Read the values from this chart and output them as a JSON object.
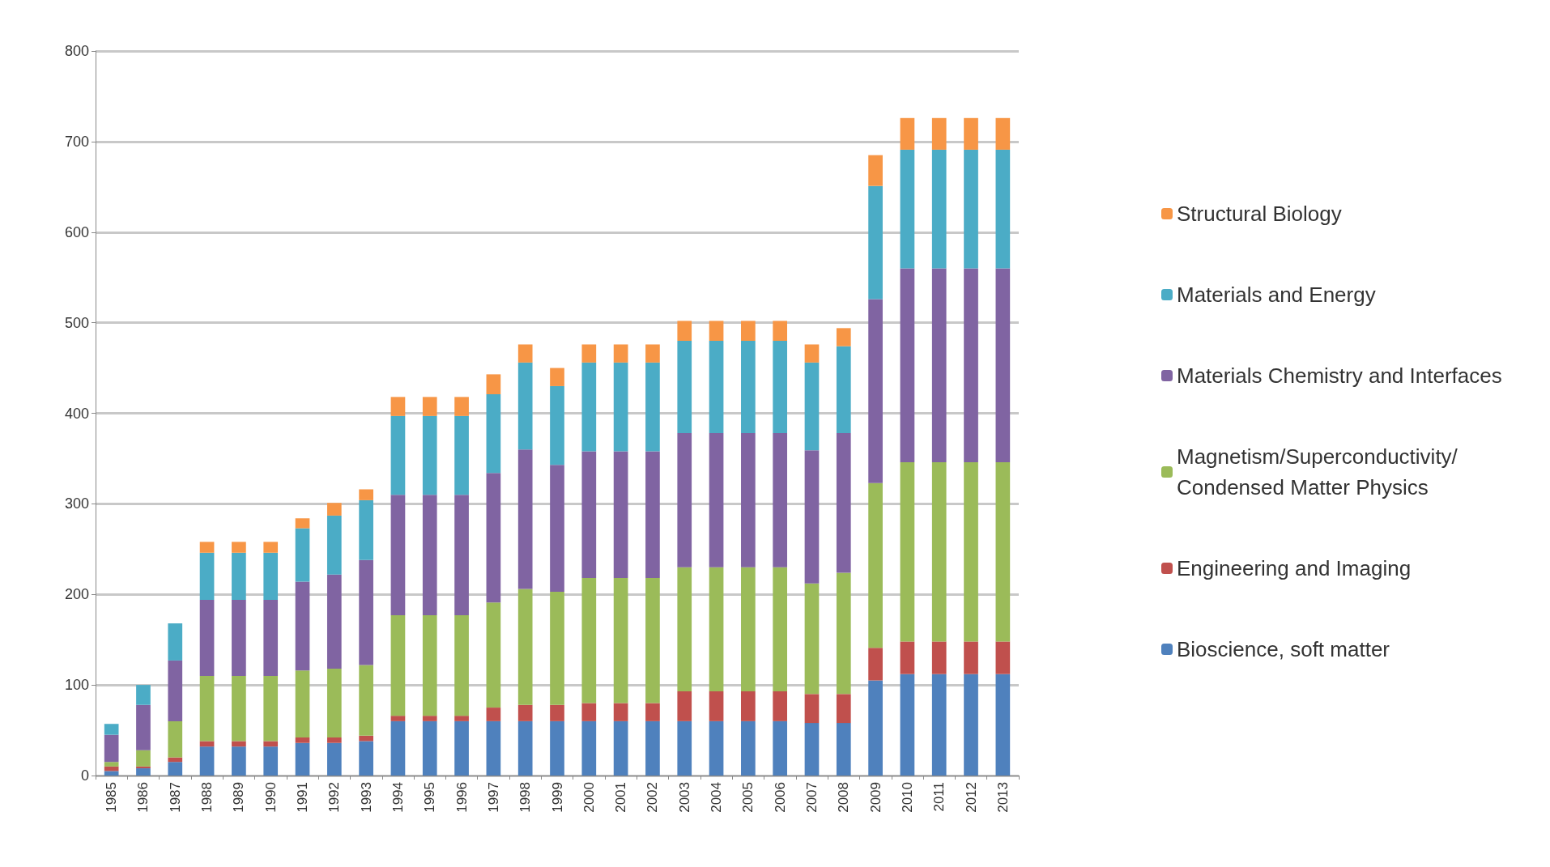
{
  "chart_data": {
    "type": "bar",
    "stacked": true,
    "categories": [
      "1985",
      "1986",
      "1987",
      "1988",
      "1989",
      "1990",
      "1991",
      "1992",
      "1993",
      "1994",
      "1995",
      "1996",
      "1997",
      "1998",
      "1999",
      "2000",
      "2001",
      "2002",
      "2003",
      "2004",
      "2005",
      "2006",
      "2007",
      "2008",
      "2009",
      "2010",
      "2011",
      "2012",
      "2013"
    ],
    "series": [
      {
        "name": "Bioscience, soft matter",
        "color": "#4f81bd",
        "values": [
          5,
          8,
          15,
          32,
          32,
          32,
          36,
          36,
          38,
          60,
          60,
          60,
          60,
          60,
          60,
          60,
          60,
          60,
          60,
          60,
          60,
          60,
          58,
          58,
          105,
          112,
          112,
          112,
          112
        ]
      },
      {
        "name": "Engineering and Imaging",
        "color": "#c0504d",
        "values": [
          5,
          2,
          5,
          6,
          6,
          6,
          6,
          6,
          6,
          6,
          6,
          6,
          15,
          18,
          18,
          20,
          20,
          20,
          33,
          33,
          33,
          33,
          32,
          32,
          36,
          36,
          36,
          36,
          36
        ]
      },
      {
        "name": "Magnetism/Superconductivity/ Condensed Matter Physics",
        "color": "#9bbb59",
        "values": [
          5,
          18,
          40,
          72,
          72,
          72,
          74,
          76,
          78,
          111,
          111,
          111,
          116,
          128,
          125,
          138,
          138,
          138,
          137,
          137,
          137,
          137,
          122,
          134,
          182,
          198,
          198,
          198,
          198
        ]
      },
      {
        "name": "Materials Chemistry and Interfaces",
        "color": "#8064a2",
        "values": [
          30,
          50,
          67,
          84,
          84,
          84,
          98,
          104,
          116,
          133,
          133,
          133,
          143,
          154,
          140,
          140,
          140,
          140,
          148,
          148,
          148,
          148,
          147,
          154,
          203,
          214,
          214,
          214,
          214
        ]
      },
      {
        "name": "Materials and Energy",
        "color": "#4bacc6",
        "values": [
          12,
          22,
          41,
          52,
          52,
          52,
          59,
          65,
          66,
          87,
          87,
          87,
          87,
          96,
          87,
          98,
          98,
          98,
          102,
          102,
          102,
          102,
          97,
          96,
          125,
          131,
          131,
          131,
          131
        ]
      },
      {
        "name": "Structural Biology",
        "color": "#f79646",
        "values": [
          0,
          0,
          0,
          12,
          12,
          12,
          11,
          14,
          12,
          21,
          21,
          21,
          22,
          20,
          20,
          20,
          20,
          20,
          22,
          22,
          22,
          22,
          20,
          20,
          34,
          35,
          35,
          35,
          35
        ]
      }
    ],
    "ylim": [
      0,
      800
    ],
    "yticks": [
      0,
      100,
      200,
      300,
      400,
      500,
      600,
      700,
      800
    ],
    "grid": "y",
    "legend": "right"
  }
}
